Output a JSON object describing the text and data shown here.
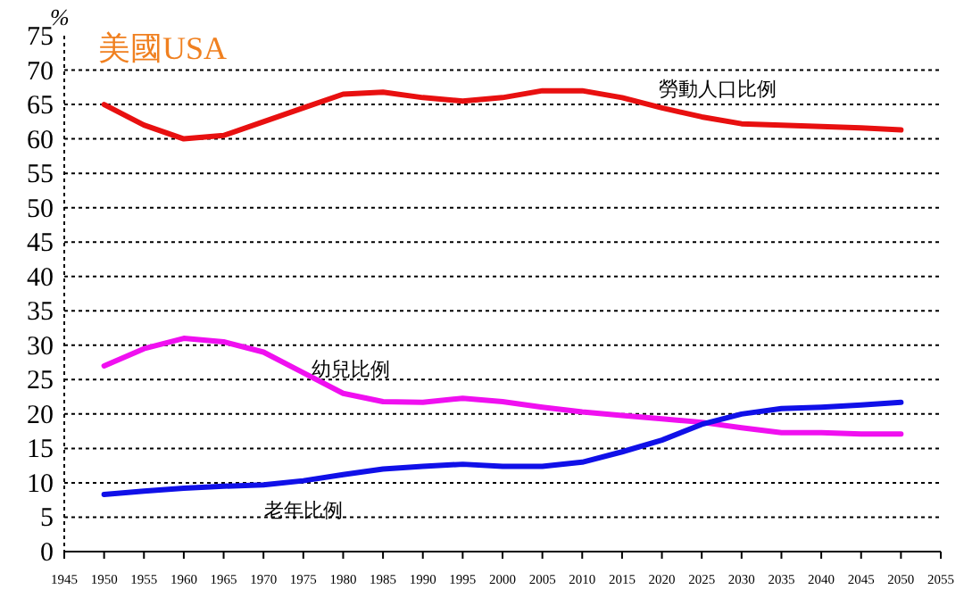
{
  "chart_data": {
    "type": "line",
    "title": "美國USA",
    "ylabel": "%",
    "x": [
      1950,
      1955,
      1960,
      1965,
      1970,
      1975,
      1980,
      1985,
      1990,
      1995,
      2000,
      2005,
      2010,
      2015,
      2020,
      2025,
      2030,
      2035,
      2040,
      2045,
      2050
    ],
    "series": [
      {
        "name": "勞動人口比例",
        "color": "#e81010",
        "values": [
          65,
          62,
          60,
          60.5,
          62.5,
          64.5,
          66.5,
          66.8,
          66,
          65.5,
          66,
          67,
          67,
          66,
          64.5,
          63.2,
          62.2,
          62,
          61.8,
          61.6,
          61.3
        ]
      },
      {
        "name": "幼兒比例",
        "color": "#f010f0",
        "values": [
          27,
          29.5,
          31,
          30.5,
          29,
          26,
          23,
          21.8,
          21.7,
          22.3,
          21.8,
          21,
          20.3,
          19.8,
          19.3,
          18.8,
          18,
          17.3,
          17.3,
          17.1,
          17.1
        ]
      },
      {
        "name": "老年比例",
        "color": "#1010e8",
        "values": [
          8.3,
          8.8,
          9.2,
          9.5,
          9.7,
          10.3,
          11.2,
          12,
          12.4,
          12.7,
          12.4,
          12.4,
          13,
          14.5,
          16.2,
          18.5,
          20,
          20.8,
          21,
          21.3,
          21.7
        ]
      }
    ],
    "xlim": [
      1945,
      2055
    ],
    "xticks": [
      1945,
      1950,
      1955,
      1960,
      1965,
      1970,
      1975,
      1980,
      1985,
      1990,
      1995,
      2000,
      2005,
      2010,
      2015,
      2020,
      2025,
      2030,
      2035,
      2040,
      2045,
      2050,
      2055
    ],
    "ylim": [
      0,
      75
    ],
    "yticks": [
      0,
      5,
      10,
      15,
      20,
      25,
      30,
      35,
      40,
      45,
      50,
      55,
      60,
      65,
      70,
      75
    ],
    "grid": "y",
    "legend": false,
    "marker": "none",
    "line_style": "solid"
  }
}
